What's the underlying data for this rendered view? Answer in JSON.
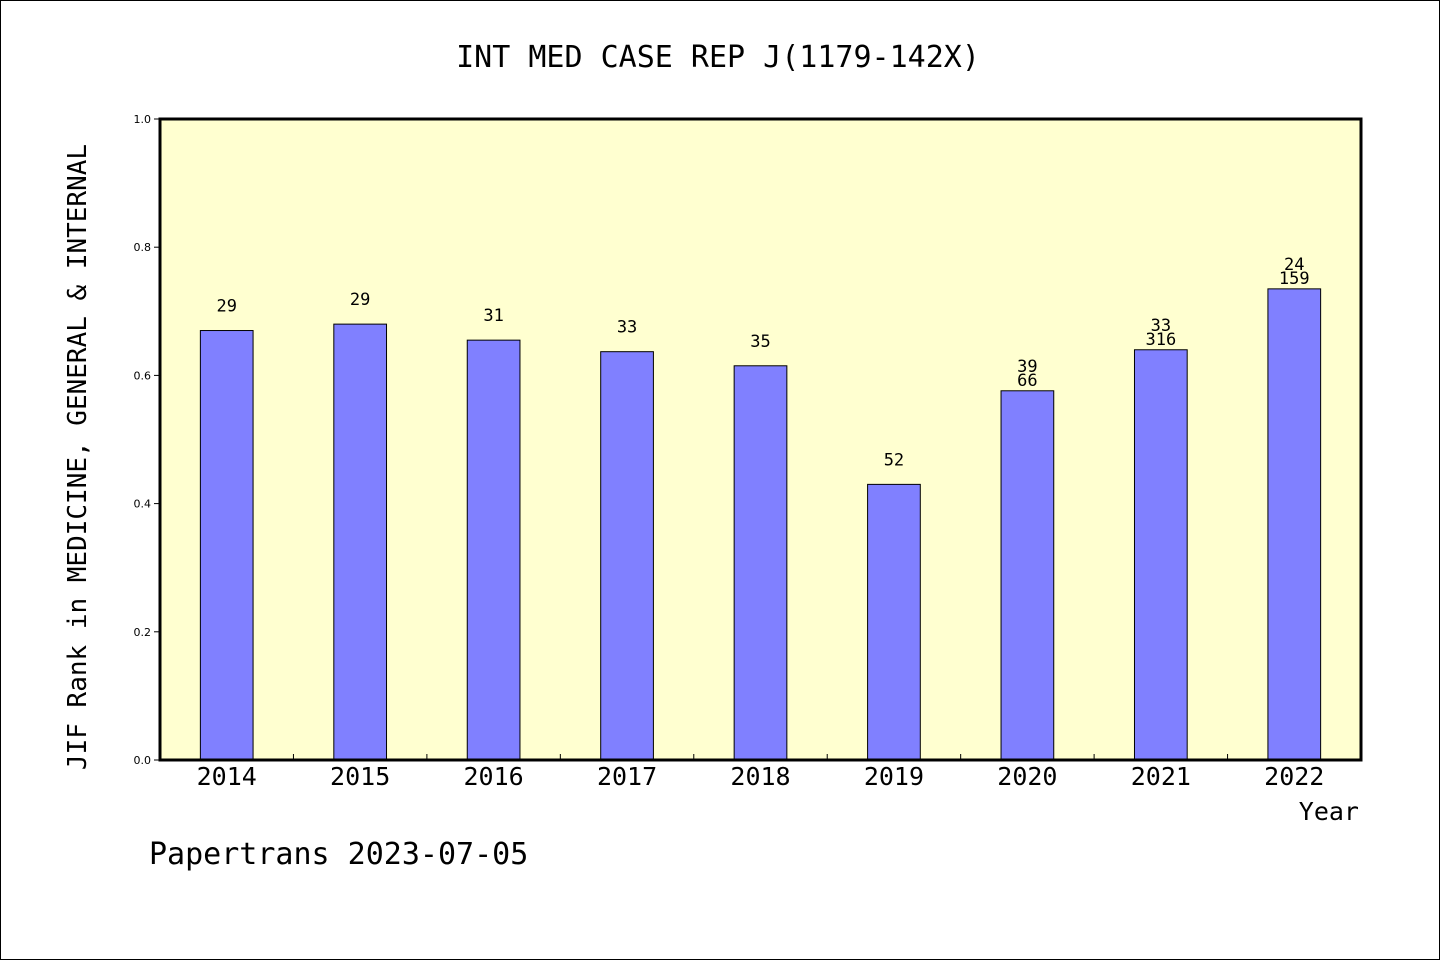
{
  "chart_data": {
    "type": "bar",
    "title": "INT MED CASE REP J(1179-142X)",
    "xlabel": "Year",
    "ylabel": "JIF Rank in MEDICINE, GENERAL & INTERNAL",
    "ylim": [
      0,
      1.0
    ],
    "yticks": [
      "0.0",
      "0.2",
      "0.4",
      "0.6",
      "0.8",
      "1.0"
    ],
    "categories": [
      "2014",
      "2015",
      "2016",
      "2017",
      "2018",
      "2019",
      "2020",
      "2021",
      "2022"
    ],
    "values": [
      0.67,
      0.68,
      0.655,
      0.637,
      0.615,
      0.43,
      0.576,
      0.64,
      0.735
    ],
    "bar_labels": [
      [
        "29"
      ],
      [
        "29"
      ],
      [
        "31"
      ],
      [
        "33"
      ],
      [
        "35"
      ],
      [
        "52"
      ],
      [
        "39",
        "66"
      ],
      [
        "33",
        "316"
      ],
      [
        "24",
        "159"
      ]
    ],
    "grid": false,
    "colors": {
      "plot_bg": "#ffffd0",
      "bar_fill": "#8080ff",
      "bar_stroke": "#000000"
    }
  },
  "footer": "Papertrans 2023-07-05"
}
